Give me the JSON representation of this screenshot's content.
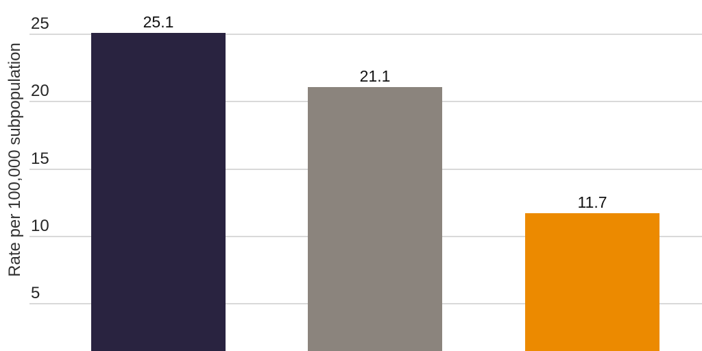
{
  "chart_data": {
    "type": "bar",
    "title": "",
    "xlabel": "",
    "ylabel": "Rate per 100,000 subpopulation",
    "values": [
      25.1,
      21.1,
      11.7
    ],
    "value_labels": [
      "25.1",
      "21.1",
      "11.7"
    ],
    "bar_colors": [
      "#292340",
      "#8b847d",
      "#ec8a00"
    ],
    "yticks": [
      5,
      10,
      15,
      20,
      25
    ],
    "ytick_labels": [
      "5",
      "10",
      "15",
      "20",
      "25"
    ],
    "ylim": [
      0,
      26
    ],
    "grid": "horizontal-only",
    "legend": "none",
    "colors": {
      "grid": "#d9d9d9",
      "tick_text": "#262626",
      "axis_title_text": "#333333",
      "value_label_text": "#111111",
      "background": "#ffffff"
    }
  }
}
